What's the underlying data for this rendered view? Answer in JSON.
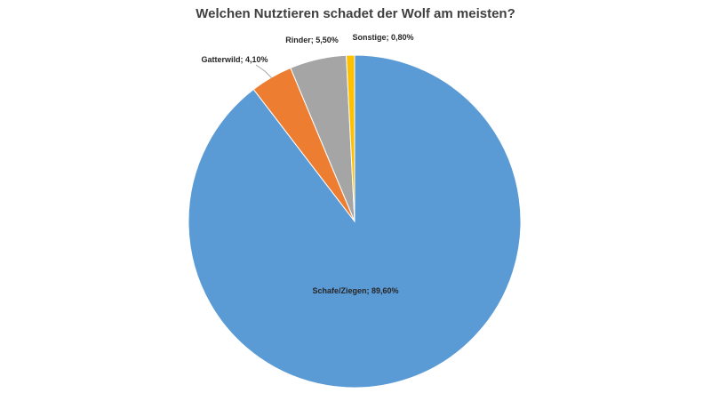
{
  "chart_data": {
    "type": "pie",
    "title": "Welchen Nutztieren schadet der Wolf am meisten?",
    "slices": [
      {
        "category": "Schafe/Ziegen",
        "value": 89.6,
        "label": "Schafe/Ziegen; 89,60%",
        "color": "#5b9bd5"
      },
      {
        "category": "Gatterwild",
        "value": 4.1,
        "label": "Gatterwild; 4,10%",
        "color": "#ed7d31"
      },
      {
        "category": "Rinder",
        "value": 5.5,
        "label": "Rinder; 5,50%",
        "color": "#a5a5a5"
      },
      {
        "category": "Sonstige",
        "value": 0.8,
        "label": "Sonstige; 0,80%",
        "color": "#ffc000"
      }
    ],
    "legend": "none",
    "start_angle": "12 o'clock",
    "direction": "counterclockwise"
  }
}
